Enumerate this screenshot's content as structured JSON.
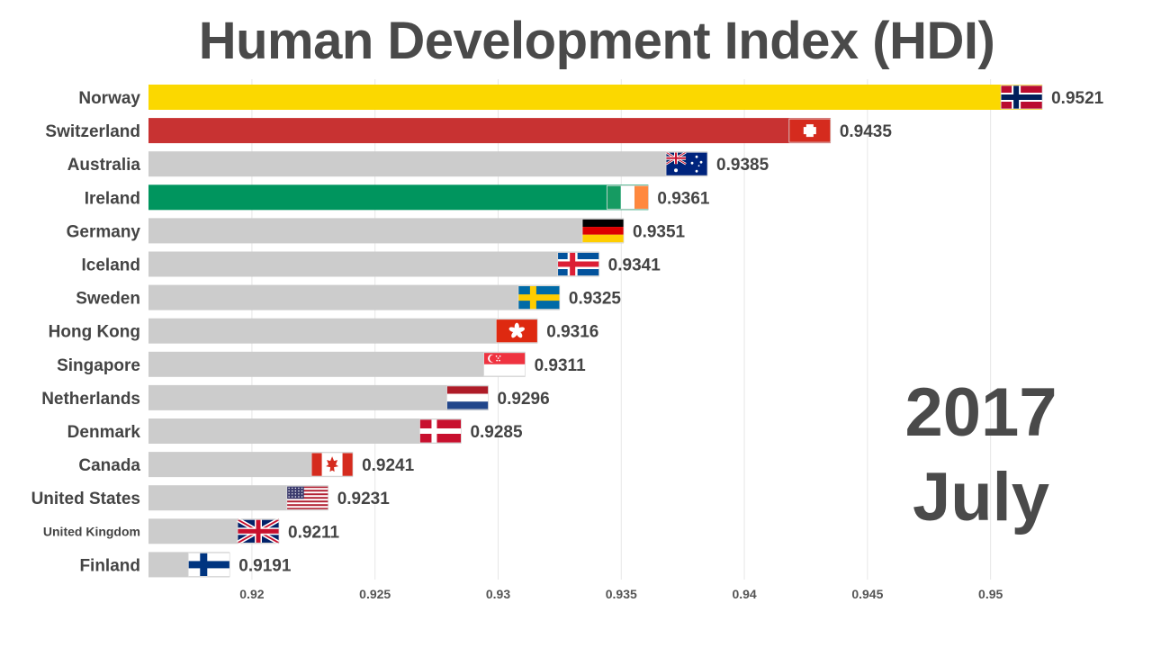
{
  "title": "Human Development Index (HDI)",
  "date": {
    "year": "2017",
    "month": "July"
  },
  "chart_data": {
    "type": "bar",
    "orientation": "horizontal",
    "title": "Human Development Index (HDI)",
    "xlabel": "",
    "ylabel": "",
    "xlim": [
      0.9158,
      0.9529
    ],
    "xticks": [
      0.92,
      0.925,
      0.93,
      0.935,
      0.94,
      0.945,
      0.95
    ],
    "xtick_labels": [
      "0.92",
      "0.925",
      "0.93",
      "0.935",
      "0.94",
      "0.945",
      "0.95"
    ],
    "grid": true,
    "categories": [
      "Norway",
      "Switzerland",
      "Australia",
      "Ireland",
      "Germany",
      "Iceland",
      "Sweden",
      "Hong Kong",
      "Singapore",
      "Netherlands",
      "Denmark",
      "Canada",
      "United States",
      "United Kingdom",
      "Finland"
    ],
    "values": [
      0.9521,
      0.9435,
      0.9385,
      0.9361,
      0.9351,
      0.9341,
      0.9325,
      0.9316,
      0.9311,
      0.9296,
      0.9285,
      0.9241,
      0.9231,
      0.9211,
      0.9191
    ],
    "value_labels": [
      "0.9521",
      "0.9435",
      "0.9385",
      "0.9361",
      "0.9351",
      "0.9341",
      "0.9325",
      "0.9316",
      "0.9311",
      "0.9296",
      "0.9285",
      "0.9241",
      "0.9231",
      "0.9211",
      "0.9191"
    ],
    "bar_colors": [
      "#fbd800",
      "#c83232",
      "#cccccc",
      "#00955e",
      "#cccccc",
      "#cccccc",
      "#cccccc",
      "#cccccc",
      "#cccccc",
      "#cccccc",
      "#cccccc",
      "#cccccc",
      "#cccccc",
      "#cccccc",
      "#cccccc"
    ],
    "flags": [
      "norway-flag-icon",
      "switzerland-flag-icon",
      "australia-flag-icon",
      "ireland-flag-icon",
      "germany-flag-icon",
      "iceland-flag-icon",
      "sweden-flag-icon",
      "hong-kong-flag-icon",
      "singapore-flag-icon",
      "netherlands-flag-icon",
      "denmark-flag-icon",
      "canada-flag-icon",
      "united-states-flag-icon",
      "united-kingdom-flag-icon",
      "finland-flag-icon"
    ]
  }
}
